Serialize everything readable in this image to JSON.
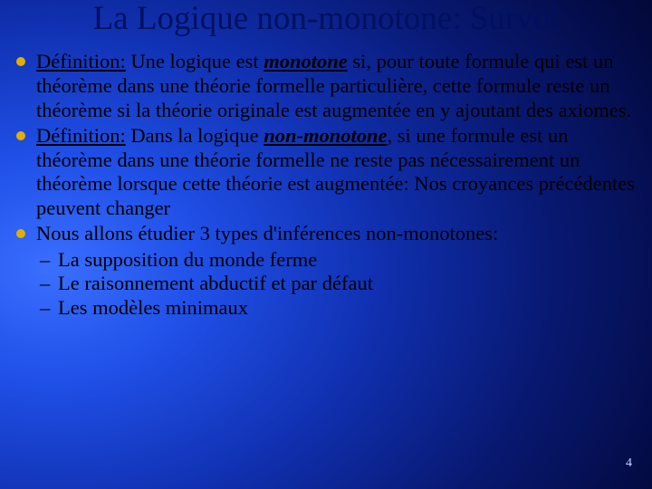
{
  "colors": {
    "background_gradient": [
      "#3a6fff",
      "#2050e8",
      "#1030b0",
      "#081870",
      "#030a40",
      "#010320"
    ],
    "title_color": "#001060",
    "body_text_color": "#000000",
    "bullet_color": "#e0b000",
    "pagenum_color": "#c8d4ff"
  },
  "typography": {
    "title_fontsize": 37,
    "body_fontsize": 22.5,
    "font_family": "Times New Roman"
  },
  "title": "La Logique non-monotone: Survol",
  "bullets": [
    {
      "term": "Définition:",
      "pre": " Une logique est ",
      "kw": "monotone",
      "post": " si, pour toute formule qui est un théorème dans une théorie formelle particulière, cette formule reste un théorème si la théorie originale est augmentée en y ajoutant des axiomes."
    },
    {
      "term": "Définition:",
      "pre": " Dans la logique ",
      "kw": "non-monotone",
      "post": ", si une formule est un théorème dans une théorie formelle ne reste pas nécessairement un théorème lorsque cette théorie est augmentée: Nos croyances précédentes peuvent changer"
    },
    {
      "term": "",
      "pre": "",
      "kw": "",
      "post": "Nous allons étudier 3 types d'inférences non-monotones:",
      "sub": [
        "La supposition du monde ferme",
        "Le raisonnement abductif et par défaut",
        "Les modèles minimaux"
      ]
    }
  ],
  "page_number": "4"
}
